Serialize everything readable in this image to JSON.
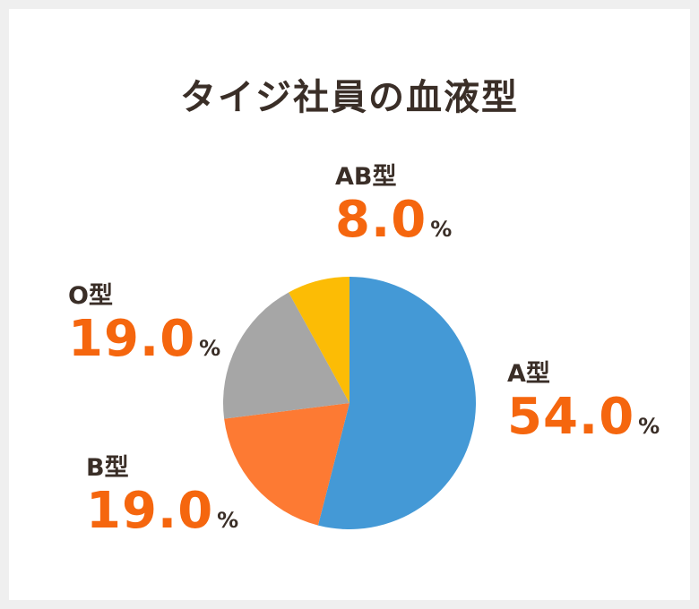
{
  "chart_data": {
    "type": "pie",
    "title": "タイジ社員の血液型",
    "unit": "%",
    "slices": [
      {
        "label": "A型",
        "value": 54.0,
        "display": "54.0",
        "color": "#4499d6"
      },
      {
        "label": "B型",
        "value": 19.0,
        "display": "19.0",
        "color": "#fd7a33"
      },
      {
        "label": "O型",
        "value": 19.0,
        "display": "19.0",
        "color": "#a6a6a6"
      },
      {
        "label": "AB型",
        "value": 8.0,
        "display": "8.0",
        "color": "#fcbc05"
      }
    ]
  }
}
